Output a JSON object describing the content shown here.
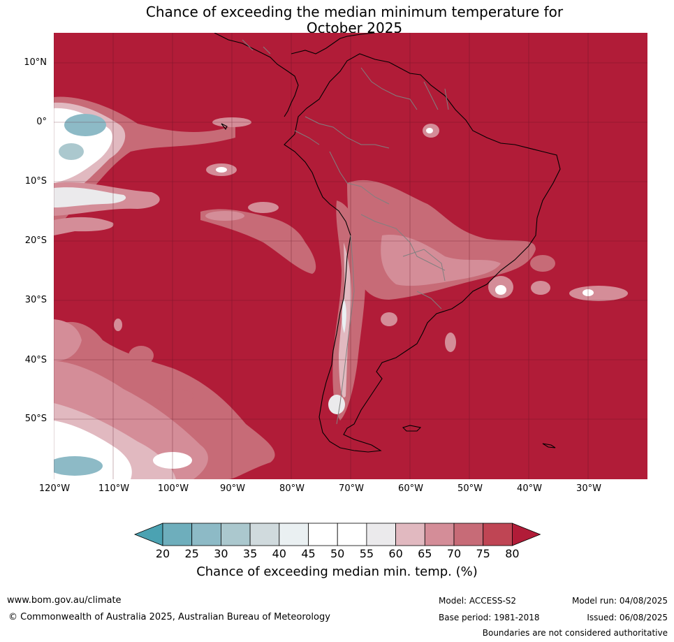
{
  "title": {
    "line1": "Chance of exceeding the median minimum temperature for",
    "line2": "October 2025"
  },
  "map": {
    "background_color": "#B11C38",
    "latitude_labels": [
      "10°N",
      "0°",
      "10°S",
      "20°S",
      "30°S",
      "40°S",
      "50°S"
    ],
    "longitude_labels": [
      "120°W",
      "110°W",
      "100°W",
      "90°W",
      "80°W",
      "70°W",
      "60°W",
      "50°W",
      "40°W",
      "30°W"
    ]
  },
  "legend": {
    "ticks": [
      "20",
      "25",
      "30",
      "35",
      "40",
      "45",
      "50",
      "55",
      "60",
      "65",
      "70",
      "75",
      "80"
    ],
    "colors": [
      "#4BA2B2",
      "#6EAEBC",
      "#8DBAC6",
      "#ABC8CE",
      "#D0DADD",
      "#EAF0F2",
      "#FFFFFF",
      "#FFFFFF",
      "#EBEAEC",
      "#E1B9C0",
      "#D48D98",
      "#C76B77",
      "#BF4554",
      "#B11C38"
    ],
    "label": "Chance of exceeding median min. temp. (%)"
  },
  "footer": {
    "website": "www.bom.gov.au/climate",
    "copyright": "© Commonwealth of Australia 2025, Australian Bureau of Meteorology",
    "model": "Model: ACCESS-S2",
    "base_period": "Base period: 1981-2018",
    "model_run": "Model run: 04/08/2025",
    "issued": "Issued: 06/08/2025",
    "disclaimer": "Boundaries are not considered authoritative"
  }
}
